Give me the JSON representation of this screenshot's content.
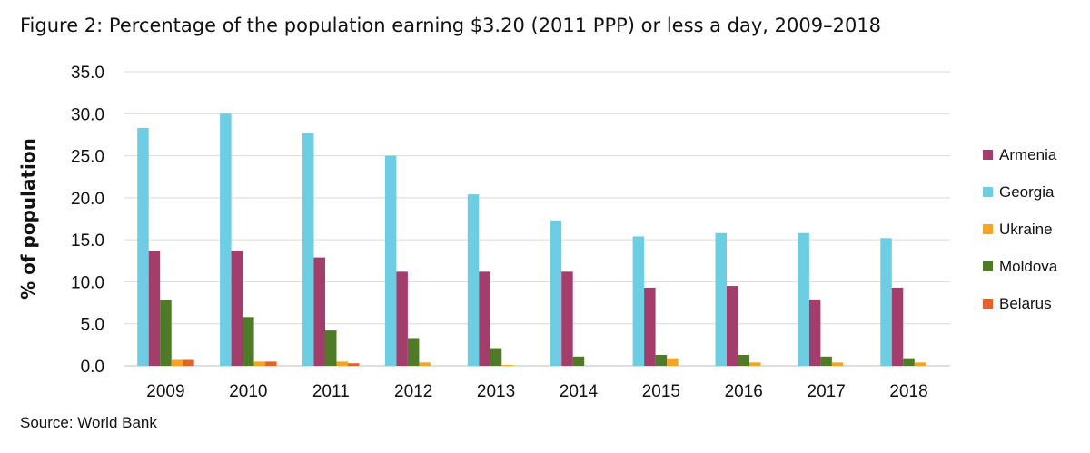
{
  "title": "Figure 2: Percentage of the population earning $3.20 (2011 PPP) or less a day, 2009–2018",
  "source": "Source: World Bank",
  "chart_data": {
    "type": "bar",
    "ylabel": "% of population",
    "ylim": [
      0,
      35
    ],
    "yticks": [
      "0.0",
      "5.0",
      "10.0",
      "15.0",
      "20.0",
      "25.0",
      "30.0",
      "35.0"
    ],
    "grid": true,
    "legend_position": "right",
    "categories": [
      "2009",
      "2010",
      "2011",
      "2012",
      "2013",
      "2014",
      "2015",
      "2016",
      "2017",
      "2018"
    ],
    "series": [
      {
        "name": "Georgia",
        "color": "#6dcde3",
        "values": [
          28.3,
          30.0,
          27.7,
          25.0,
          20.4,
          17.3,
          15.4,
          15.8,
          15.8,
          15.2
        ]
      },
      {
        "name": "Armenia",
        "color": "#a33e6c",
        "values": [
          13.7,
          13.7,
          12.9,
          11.2,
          11.2,
          11.2,
          9.3,
          9.5,
          7.9,
          9.3
        ]
      },
      {
        "name": "Moldova",
        "color": "#4f7a27",
        "values": [
          7.8,
          5.8,
          4.2,
          3.3,
          2.1,
          1.1,
          1.3,
          1.3,
          1.1,
          0.9
        ]
      },
      {
        "name": "Ukraine",
        "color": "#f2a52a",
        "values": [
          0.7,
          0.5,
          0.5,
          0.4,
          0.1,
          0.0,
          0.9,
          0.4,
          0.4,
          0.4
        ]
      },
      {
        "name": "Belarus",
        "color": "#e0642a",
        "values": [
          0.7,
          0.5,
          0.3,
          0.0,
          0.0,
          0.0,
          0.0,
          0.0,
          0.0,
          0.0
        ]
      }
    ],
    "legend_order": [
      "Armenia",
      "Georgia",
      "Ukraine",
      "Moldova",
      "Belarus"
    ]
  }
}
